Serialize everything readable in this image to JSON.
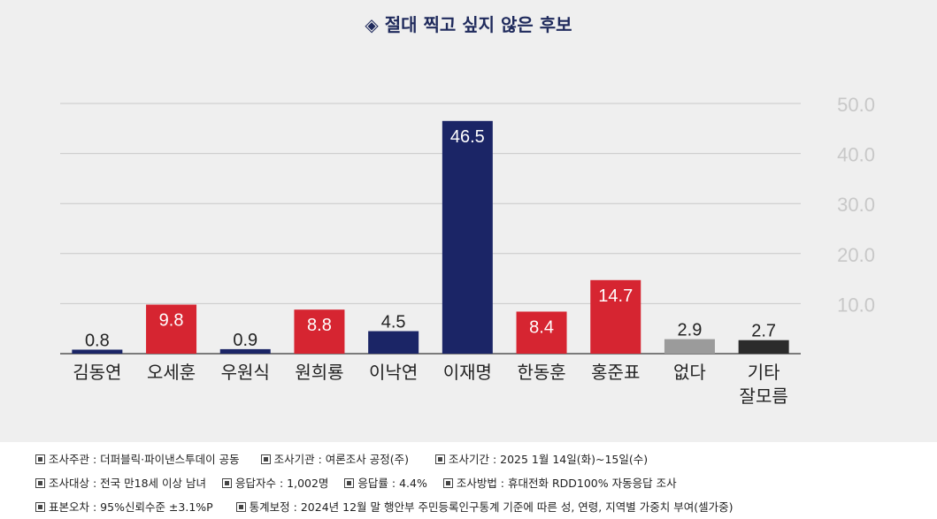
{
  "title": "◈ 절대 찍고 싶지 않은 후보",
  "chart_data": {
    "type": "bar",
    "title": "◈ 절대 찍고 싶지 않은 후보",
    "categories": [
      "김동연",
      "오세훈",
      "우원식",
      "원희룡",
      "이낙연",
      "이재명",
      "한동훈",
      "홍준표",
      "없다",
      "기타\n잘모름"
    ],
    "values": [
      0.8,
      9.8,
      0.9,
      8.8,
      4.5,
      46.5,
      8.4,
      14.7,
      2.9,
      2.7
    ],
    "bar_colors": [
      "#1b2566",
      "#d62531",
      "#1b2566",
      "#d62531",
      "#1b2566",
      "#1b2566",
      "#d62531",
      "#d62531",
      "#9b9b9b",
      "#2b2b2b"
    ],
    "ylim": [
      0,
      50
    ],
    "yticks": [
      "10.0",
      "20.0",
      "30.0",
      "40.0",
      "50.0"
    ],
    "ytick_values": [
      10,
      20,
      30,
      40,
      50
    ],
    "grid": true,
    "y_axis_side": "right",
    "xlabel": "",
    "ylabel": ""
  },
  "footer": {
    "rows": [
      [
        "조사주관 : 더퍼블릭·파이낸스투데이 공동",
        "조사기관 : 여론조사 공정(주)",
        "조사기간 : 2025 1월 14일(화)~15일(수)"
      ],
      [
        "조사대상 : 전국 만18세 이상 남녀",
        "응답자수 : 1,002명",
        "응답률 : 4.4%",
        "조사방법 : 휴대전화 RDD100% 자동응답 조사"
      ],
      [
        "표본오차 : 95%신뢰수준 ±3.1%P",
        "통계보정 : 2024년 12월 말 행안부 주민등록인구통계 기준에 따른 성, 연령, 지역별 가중치 부여(셀가중)"
      ]
    ]
  }
}
